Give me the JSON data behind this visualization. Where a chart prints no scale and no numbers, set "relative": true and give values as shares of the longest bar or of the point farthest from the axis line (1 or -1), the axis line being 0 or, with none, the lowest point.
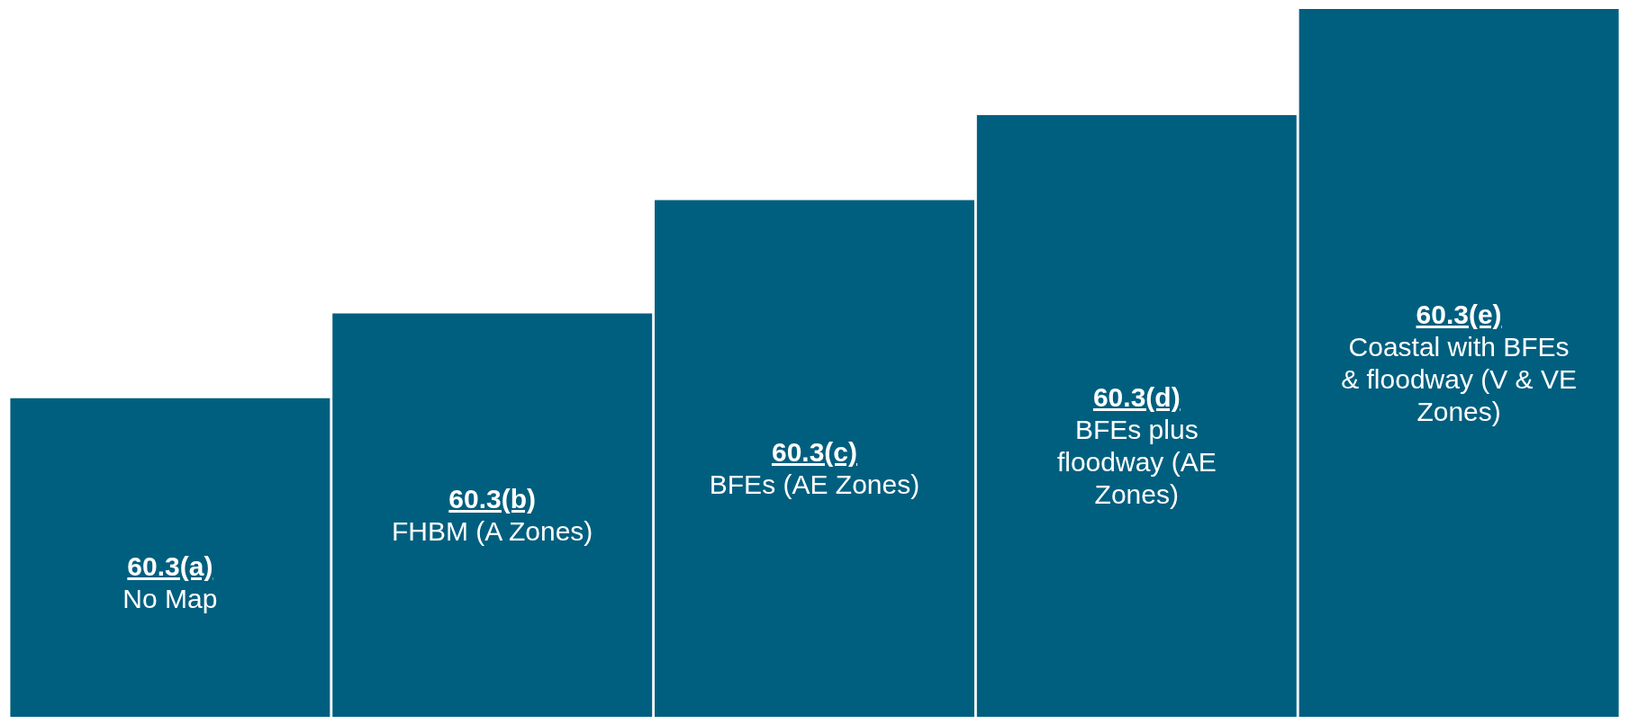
{
  "chart_data": {
    "type": "bar",
    "relative": true,
    "categories": [
      "60.3(a)",
      "60.3(b)",
      "60.3(c)",
      "60.3(d)",
      "60.3(e)"
    ],
    "values": [
      0.45,
      0.57,
      0.73,
      0.85,
      1
    ],
    "color": "#005f7f",
    "annotations": [
      "No Map",
      "FHBM (A Zones)",
      "BFEs (AE Zones)",
      "BFEs plus floodway (AE Zones)",
      "Coastal with BFEs & floodway (V & VE Zones)"
    ]
  }
}
